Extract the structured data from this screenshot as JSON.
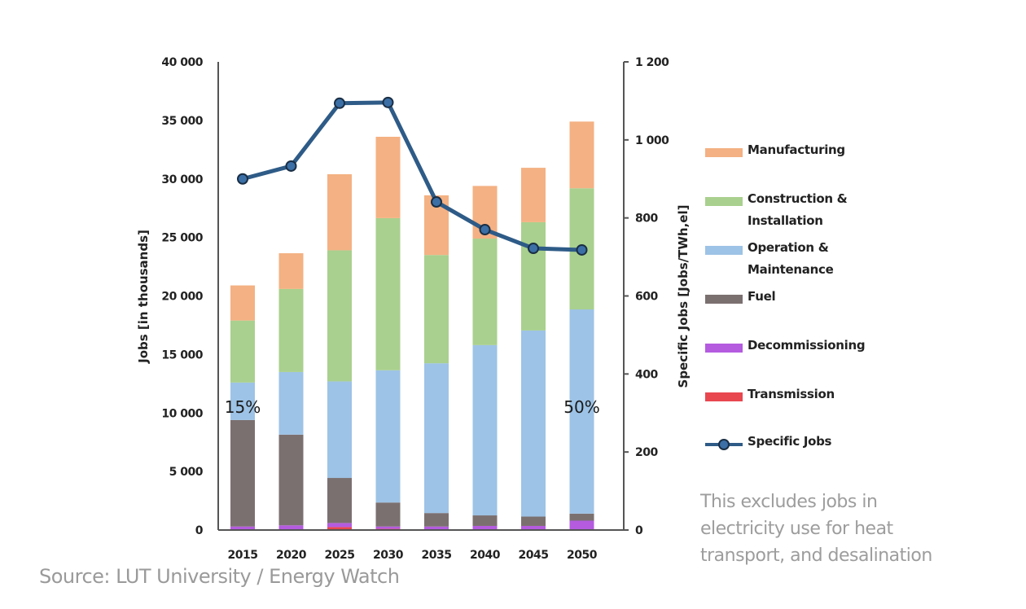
{
  "chart_data": {
    "type": "bar",
    "stacked": true,
    "title": "",
    "xlabel": "",
    "ylabel": "Jobs [in thousands]",
    "y2label": "Specific Jobs [Jobs/TWh,el]",
    "ylim": [
      0,
      40000
    ],
    "y2lim": [
      0,
      1200
    ],
    "yticks": [
      "0",
      "5 000",
      "10 000",
      "15 000",
      "20 000",
      "25 000",
      "30 000",
      "35 000",
      "40 000"
    ],
    "y2ticks": [
      "0",
      "200",
      "400",
      "600",
      "800",
      "1 000",
      "1 200"
    ],
    "grid": false,
    "legend_position": "right",
    "categories": [
      "2015",
      "2020",
      "2025",
      "2030",
      "2035",
      "2040",
      "2045",
      "2050"
    ],
    "series": [
      {
        "name": "Transmission",
        "color": "#e8474f",
        "values": [
          50,
          50,
          250,
          100,
          50,
          50,
          50,
          50
        ]
      },
      {
        "name": "Decommissioning",
        "color": "#b45be0",
        "values": [
          250,
          350,
          350,
          200,
          250,
          300,
          300,
          750
        ]
      },
      {
        "name": "Fuel",
        "color": "#7b7070",
        "values": [
          9100,
          7750,
          3850,
          2050,
          1150,
          900,
          800,
          600
        ]
      },
      {
        "name": "Operation & Maintenance",
        "color": "#9dc3e6",
        "values": [
          3200,
          5350,
          8250,
          11300,
          12800,
          14550,
          15900,
          17450
        ]
      },
      {
        "name": "Construction & Installation",
        "color": "#a9d08e",
        "values": [
          5300,
          7100,
          11200,
          13000,
          9250,
          9100,
          9250,
          10350
        ]
      },
      {
        "name": "Manufacturing",
        "color": "#f4b183",
        "values": [
          3000,
          3050,
          6500,
          6950,
          5100,
          4500,
          4650,
          5700
        ]
      }
    ],
    "line_series": {
      "name": "Specific Jobs",
      "axis": "right",
      "color": "#2e5b87",
      "values": [
        900,
        933,
        1094,
        1096,
        841,
        770,
        722,
        718
      ]
    },
    "annotations": [
      {
        "text": "15%",
        "category": "2015",
        "value": 10500
      },
      {
        "text": "50%",
        "category": "2050",
        "value": 10500
      }
    ]
  },
  "legend": [
    {
      "label": "Manufacturing",
      "color": "#f4b183",
      "kind": "bar"
    },
    {
      "label": "Construction &\nInstallation",
      "color": "#a9d08e",
      "kind": "bar"
    },
    {
      "label": "Operation &\nMaintenance",
      "color": "#9dc3e6",
      "kind": "bar"
    },
    {
      "label": "Fuel",
      "color": "#7b7070",
      "kind": "bar"
    },
    {
      "label": "Decommissioning",
      "color": "#b45be0",
      "kind": "bar"
    },
    {
      "label": "Transmission",
      "color": "#e8474f",
      "kind": "bar"
    },
    {
      "label": "Specific Jobs",
      "color": "#2e5b87",
      "kind": "line"
    }
  ],
  "source": "Source: LUT University / Energy Watch",
  "note": "This excludes jobs in electricity use for heat transport, and desalination"
}
